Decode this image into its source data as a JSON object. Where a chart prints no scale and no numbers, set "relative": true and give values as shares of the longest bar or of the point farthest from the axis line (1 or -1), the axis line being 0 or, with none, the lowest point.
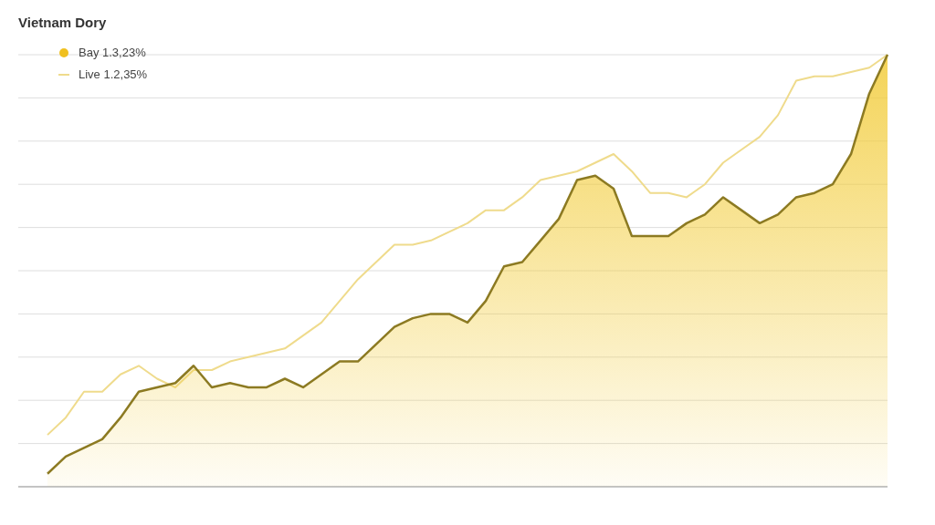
{
  "chart_data": {
    "type": "area",
    "title": "Vietnam Dory",
    "relative": true,
    "grid": "y",
    "legend": "top left",
    "categories": [
      null,
      null,
      null,
      null,
      null,
      null,
      null,
      null,
      null,
      null,
      null,
      null,
      null,
      null,
      null,
      null,
      null,
      null,
      null,
      null,
      null,
      null,
      null,
      null,
      null,
      null,
      null,
      null,
      null,
      null,
      null,
      null,
      null,
      null,
      null,
      null,
      null,
      null,
      null,
      null,
      null,
      null,
      null,
      null,
      null,
      null,
      null
    ],
    "series": [
      {
        "name": "Live 1.2,35%",
        "type": "line",
        "color": "#efdb8c",
        "values": [
          0.12,
          0.16,
          0.22,
          0.22,
          0.26,
          0.28,
          0.25,
          0.23,
          0.27,
          0.27,
          0.29,
          0.3,
          0.31,
          0.32,
          0.35,
          0.38,
          0.43,
          0.48,
          0.52,
          0.56,
          0.56,
          0.57,
          0.59,
          0.61,
          0.64,
          0.64,
          0.67,
          0.71,
          0.72,
          0.73,
          0.75,
          0.77,
          0.73,
          0.68,
          0.68,
          0.67,
          0.7,
          0.75,
          0.78,
          0.81,
          0.86,
          0.94,
          0.95,
          0.95,
          0.96,
          0.97,
          1
        ]
      },
      {
        "name": "Bay 1.3,23%",
        "color": "#8c7a22",
        "values": [
          0.03,
          0.07,
          0.09,
          0.11,
          0.16,
          0.22,
          0.23,
          0.24,
          0.28,
          0.23,
          0.24,
          0.23,
          0.23,
          0.25,
          0.23,
          0.26,
          0.29,
          0.29,
          0.33,
          0.37,
          0.39,
          0.4,
          0.4,
          0.38,
          0.43,
          0.51,
          0.52,
          0.57,
          0.62,
          0.71,
          0.72,
          0.69,
          0.58,
          0.58,
          0.58,
          0.61,
          0.63,
          0.67,
          0.64,
          0.61,
          0.63,
          0.67,
          0.68,
          0.7,
          0.77,
          0.91,
          1
        ]
      }
    ]
  }
}
